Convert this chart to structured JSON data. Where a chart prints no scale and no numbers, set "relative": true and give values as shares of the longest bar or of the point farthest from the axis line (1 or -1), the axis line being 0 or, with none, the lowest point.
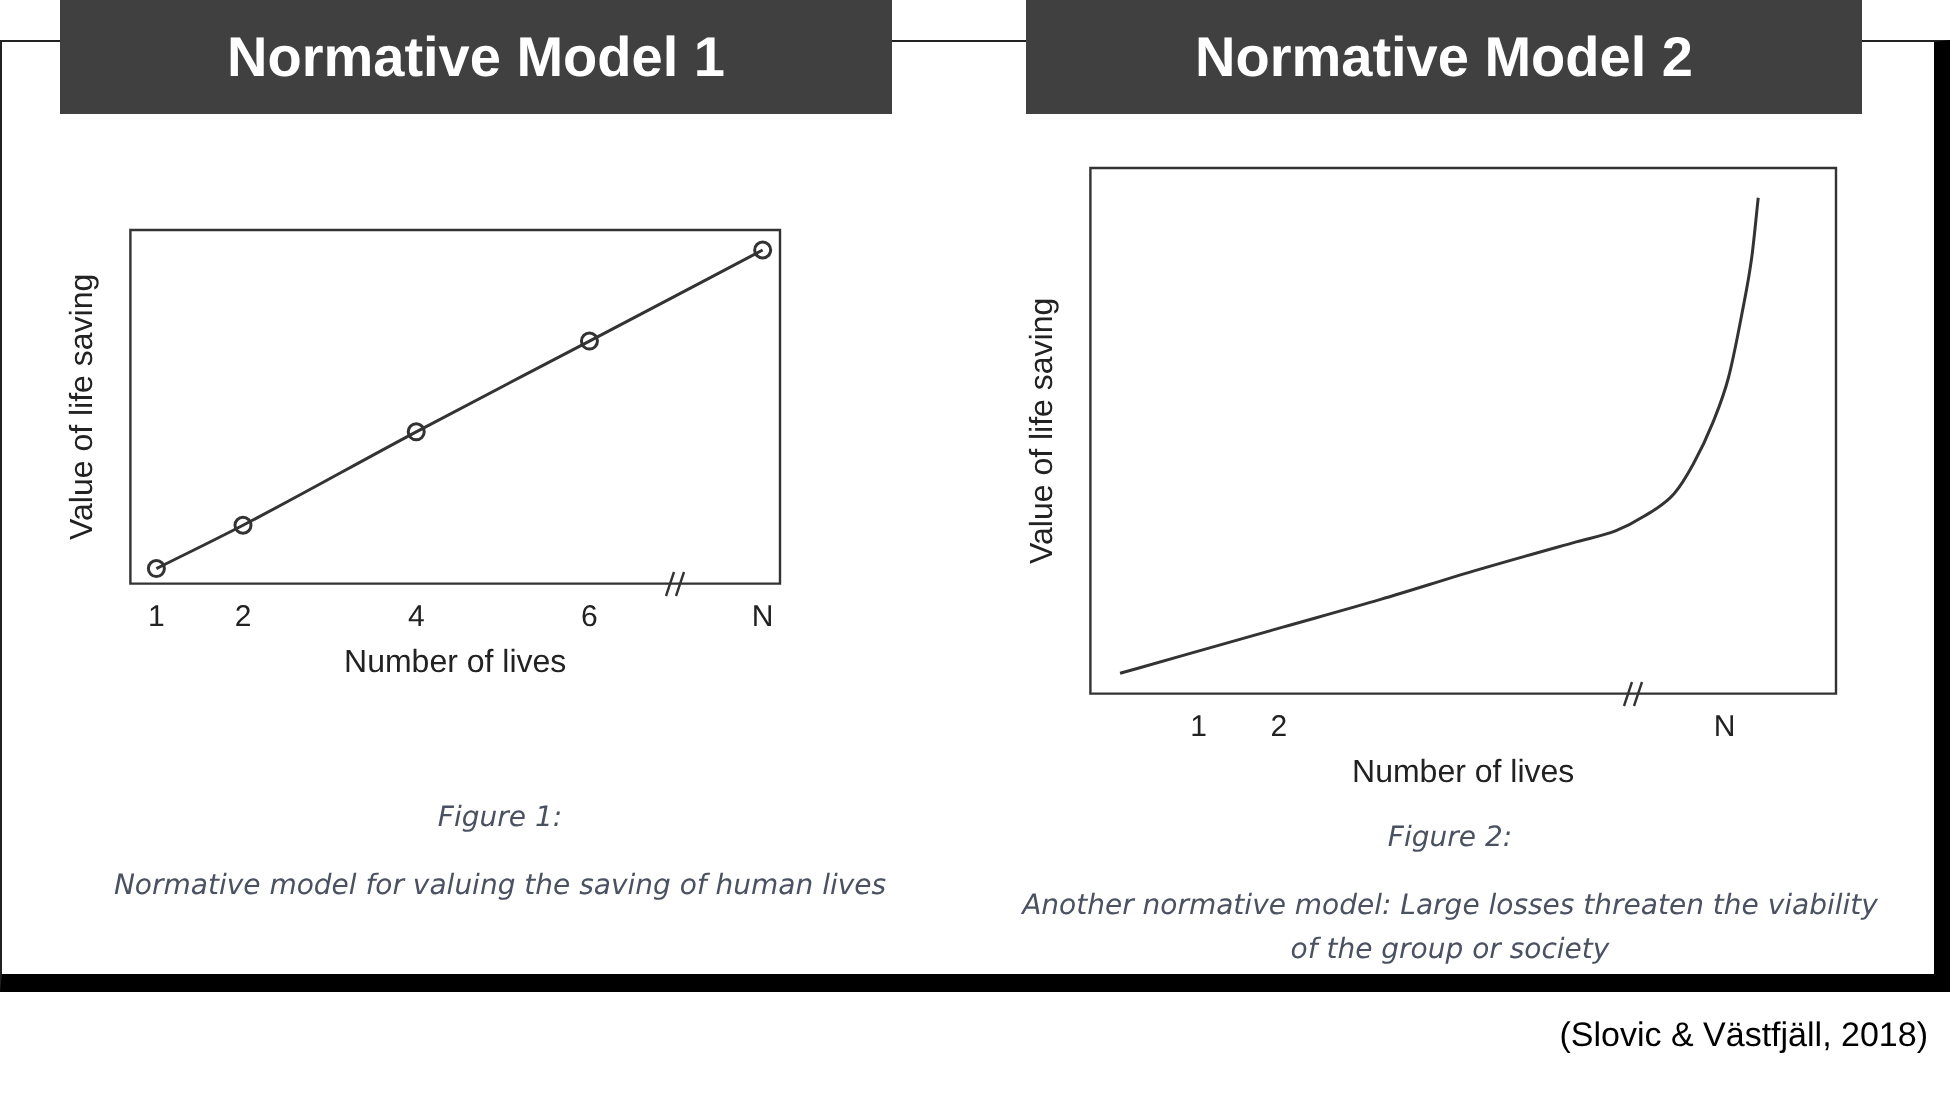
{
  "chart_data": [
    {
      "type": "line",
      "title": "Normative Model 1",
      "xlabel": "Number of lives",
      "ylabel": "Value of life saving",
      "relative": true,
      "x": [
        1,
        2,
        4,
        6,
        8
      ],
      "xlim": [
        0.7,
        8.2
      ],
      "xticks": [
        1,
        2,
        4,
        6,
        {
          "value": 8,
          "label": "N"
        }
      ],
      "tick_labels": "x",
      "marker": "circle",
      "grid": false,
      "series": [
        {
          "color": "#333333",
          "values": [
            0.045,
            0.175,
            0.455,
            0.727,
            1
          ]
        }
      ],
      "annotations": [
        "Figure 1:",
        "Normative model for valuing the saving of human lives"
      ]
    },
    {
      "type": "line",
      "title": "Normative Model 2",
      "xlabel": "Number of lives",
      "ylabel": "Value of life saving",
      "relative": true,
      "x": [
        0.02,
        0.83,
        2.05,
        3.27,
        4.49,
        5.71,
        6.2,
        6.56,
        6.93,
        7.17,
        7.41,
        7.61,
        7.78,
        7.9,
        7.98
      ],
      "xlim": [
        -0.35,
        8.95
      ],
      "xticks": [
        1,
        2,
        {
          "value": 7.56,
          "label": "N"
        }
      ],
      "tick_labels": "x",
      "marker": "none",
      "grid": false,
      "series": [
        {
          "color": "#333333",
          "values": [
            0.041,
            0.078,
            0.134,
            0.19,
            0.25,
            0.306,
            0.328,
            0.358,
            0.403,
            0.463,
            0.545,
            0.638,
            0.769,
            0.881,
            1
          ]
        }
      ],
      "annotations": [
        "Figure 2:",
        "Another normative model: Large losses threaten the viability of the group or society",
        "(Slovic & Västfjäll, 2018)"
      ]
    }
  ]
}
